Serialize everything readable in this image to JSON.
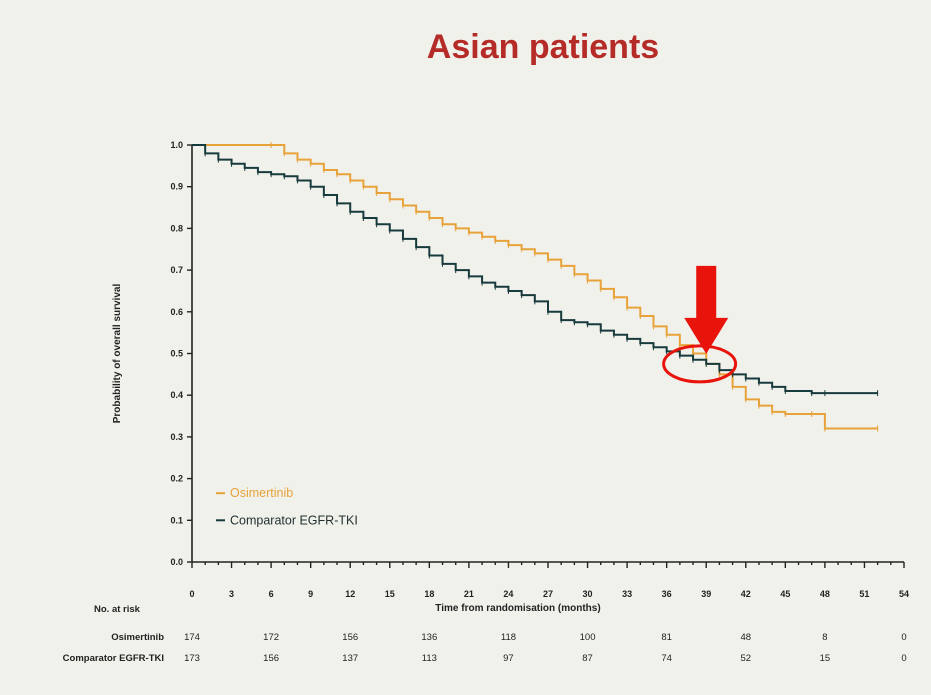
{
  "chart_data": {
    "type": "line",
    "title": "Asian patients",
    "xlabel": "Time from randomisation (months)",
    "ylabel": "Probability of overall survival",
    "xlim": [
      0,
      54
    ],
    "ylim": [
      0,
      1.0
    ],
    "xticks": [
      0,
      3,
      6,
      9,
      12,
      15,
      18,
      21,
      24,
      27,
      30,
      33,
      36,
      39,
      42,
      45,
      48,
      51,
      54
    ],
    "yticks": [
      "0.0",
      "0.1",
      "0.2",
      "0.3",
      "0.4",
      "0.5",
      "0.6",
      "0.7",
      "0.8",
      "0.9",
      "1.0"
    ],
    "legend_position": "bottom-left",
    "series": [
      {
        "name": "Osimertinib",
        "color": "#e8a23a",
        "step": true,
        "x": [
          0,
          6,
          7,
          8,
          9,
          10,
          11,
          12,
          13,
          14,
          15,
          16,
          17,
          18,
          19,
          20,
          21,
          22,
          23,
          24,
          25,
          26,
          27,
          28,
          29,
          30,
          31,
          32,
          33,
          34,
          35,
          36,
          37,
          38,
          39,
          40,
          41,
          42,
          43,
          44,
          45,
          47,
          48,
          52
        ],
        "y": [
          1.0,
          1.0,
          0.98,
          0.965,
          0.955,
          0.94,
          0.93,
          0.915,
          0.9,
          0.885,
          0.87,
          0.855,
          0.84,
          0.825,
          0.81,
          0.8,
          0.79,
          0.78,
          0.77,
          0.76,
          0.75,
          0.74,
          0.725,
          0.71,
          0.69,
          0.675,
          0.655,
          0.635,
          0.61,
          0.59,
          0.565,
          0.545,
          0.52,
          0.5,
          0.475,
          0.45,
          0.42,
          0.39,
          0.375,
          0.36,
          0.355,
          0.355,
          0.32,
          0.32
        ]
      },
      {
        "name": "Comparator EGFR-TKI",
        "color": "#173a3c",
        "step": true,
        "x": [
          0,
          1,
          2,
          3,
          4,
          5,
          6,
          7,
          8,
          9,
          10,
          11,
          12,
          13,
          14,
          15,
          16,
          17,
          18,
          19,
          20,
          21,
          22,
          23,
          24,
          25,
          26,
          27,
          28,
          29,
          30,
          31,
          32,
          33,
          34,
          35,
          36,
          37,
          38,
          39,
          40,
          41,
          42,
          43,
          44,
          45,
          47,
          48,
          52
        ],
        "y": [
          1.0,
          0.98,
          0.965,
          0.955,
          0.945,
          0.935,
          0.93,
          0.925,
          0.915,
          0.9,
          0.88,
          0.86,
          0.84,
          0.825,
          0.81,
          0.795,
          0.775,
          0.755,
          0.735,
          0.715,
          0.7,
          0.685,
          0.67,
          0.66,
          0.65,
          0.64,
          0.625,
          0.6,
          0.58,
          0.575,
          0.57,
          0.555,
          0.545,
          0.535,
          0.525,
          0.515,
          0.505,
          0.495,
          0.485,
          0.475,
          0.46,
          0.45,
          0.44,
          0.43,
          0.42,
          0.41,
          0.405,
          0.405,
          0.405
        ]
      }
    ],
    "annotations": [
      {
        "type": "arrow",
        "color": "#e8140c",
        "points_to_x": 39,
        "points_to_y": 0.48
      },
      {
        "type": "ellipse",
        "color": "#e8140c",
        "center_x": 38.5,
        "center_y": 0.475
      }
    ],
    "risk_table": {
      "heading": "No. at risk",
      "time_points": [
        0,
        6,
        12,
        18,
        24,
        30,
        36,
        42,
        48,
        54
      ],
      "rows": [
        {
          "label": "Osimertinib",
          "counts": [
            "174",
            "172",
            "156",
            "136",
            "118",
            "100",
            "81",
            "48",
            "8",
            "0"
          ]
        },
        {
          "label": "Comparator EGFR-TKI",
          "counts": [
            "173",
            "156",
            "137",
            "113",
            "97",
            "87",
            "74",
            "52",
            "15",
            "0"
          ]
        }
      ]
    }
  }
}
